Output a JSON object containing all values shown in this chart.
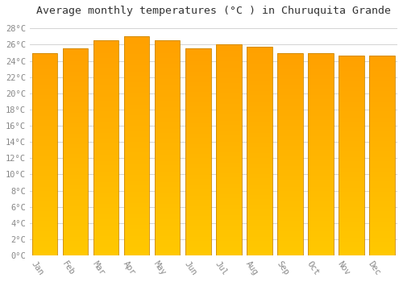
{
  "months": [
    "Jan",
    "Feb",
    "Mar",
    "Apr",
    "May",
    "Jun",
    "Jul",
    "Aug",
    "Sep",
    "Oct",
    "Nov",
    "Dec"
  ],
  "values": [
    25.0,
    25.5,
    26.5,
    27.0,
    26.5,
    25.5,
    26.0,
    25.7,
    25.0,
    25.0,
    24.7,
    24.7
  ],
  "bar_color_top": "#FFB800",
  "bar_color_bottom": "#FFDD00",
  "bar_edge_color": "#CC8800",
  "title": "Average monthly temperatures (°C ) in Churuquita Grande",
  "ylim": [
    0,
    29
  ],
  "ytick_step": 2,
  "background_color": "#ffffff",
  "grid_color": "#cccccc",
  "title_fontsize": 9.5,
  "tick_fontsize": 7.5,
  "font_family": "monospace"
}
